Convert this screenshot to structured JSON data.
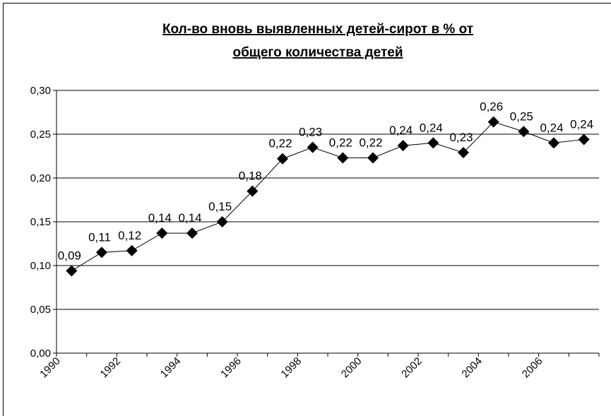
{
  "chart_data": {
    "type": "line",
    "title": [
      "Кол-во вновь выявленных детей-сирот в % от",
      "общего количества детей"
    ],
    "categories": [
      "1990",
      null,
      "1992",
      null,
      "1994",
      null,
      "1996",
      null,
      "1998",
      null,
      "2000",
      null,
      "2002",
      null,
      "2004",
      null,
      "2006",
      null
    ],
    "series": [
      {
        "name": null,
        "color": "#000000",
        "values": [
          0.094,
          0.115,
          0.117,
          0.137,
          0.137,
          0.15,
          0.185,
          0.222,
          0.235,
          0.223,
          0.223,
          0.237,
          0.24,
          0.229,
          0.264,
          0.253,
          0.24,
          0.244
        ],
        "value_labels": [
          "0,09",
          "0,11",
          "0,12",
          "0,14",
          "0,14",
          "0,15",
          "0,18",
          "0,22",
          "0,23",
          "0,22",
          "0,22",
          "0,24",
          "0,24",
          "0,23",
          "0,26",
          "0,25",
          "0,24",
          "0,24"
        ]
      }
    ],
    "ylim": [
      0,
      0.3
    ],
    "yticks": [
      {
        "value": 0,
        "label": "0,00"
      },
      {
        "value": 0.05,
        "label": "0,05"
      },
      {
        "value": 0.1,
        "label": "0,10"
      },
      {
        "value": 0.15,
        "label": "0,15"
      },
      {
        "value": 0.2,
        "label": "0,20"
      },
      {
        "value": 0.25,
        "label": "0,25"
      },
      {
        "value": 0.3,
        "label": "0,30"
      }
    ],
    "grid": true
  }
}
